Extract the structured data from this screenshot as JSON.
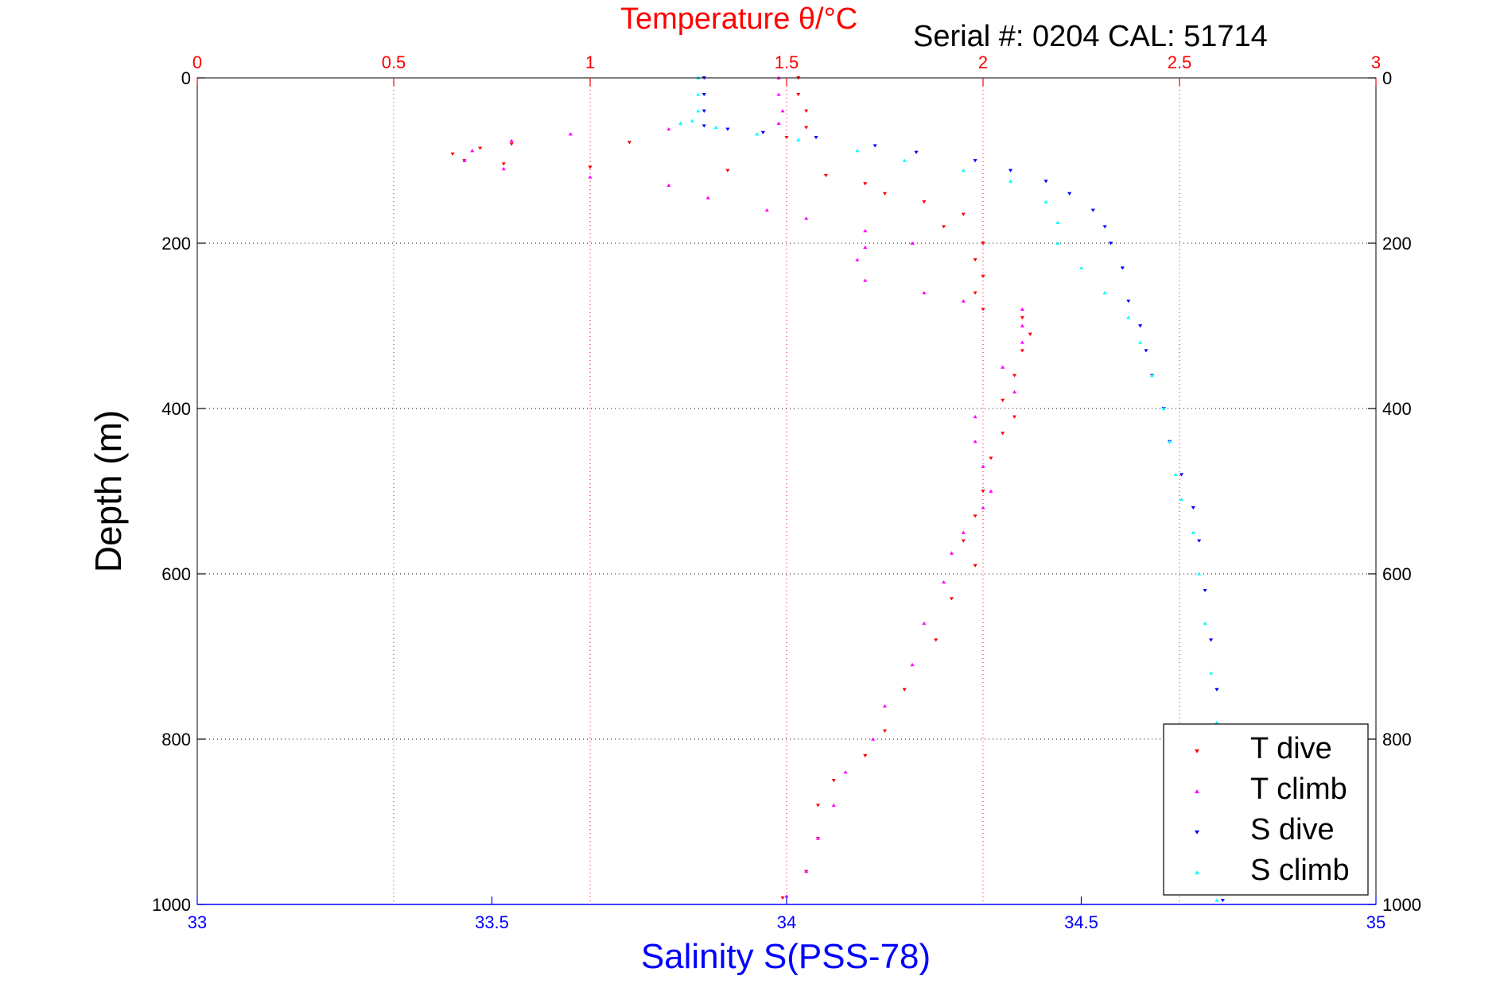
{
  "header": {
    "temp_title": "Temperature θ/°C",
    "serial": "Serial #: 0204  CAL: 51714"
  },
  "chart_data": {
    "type": "scatter",
    "title": "Temperature θ/°C",
    "ylabel": "Depth (m)",
    "xlabel": "Salinity S(PSS-78)",
    "top_axis": {
      "label": "Temperature θ/°C",
      "range": [
        0,
        3
      ],
      "ticks": [
        "0",
        "0.5",
        "1",
        "1.5",
        "2",
        "2.5",
        "3"
      ],
      "color": "#ff0000"
    },
    "bottom_axis": {
      "label": "Salinity S(PSS-78)",
      "range": [
        33,
        35
      ],
      "ticks": [
        "33",
        "33.5",
        "34",
        "34.5",
        "35"
      ],
      "color": "#0000ff"
    },
    "left_axis": {
      "range": [
        0,
        1000
      ],
      "reversed": true,
      "ticks": [
        "0",
        "200",
        "400",
        "600",
        "800",
        "1000"
      ]
    },
    "right_axis": {
      "range": [
        0,
        1000
      ],
      "reversed": true,
      "ticks": [
        "0",
        "200",
        "400",
        "600",
        "800",
        "1000"
      ]
    },
    "grid": true,
    "legend": {
      "position": "bottom-right",
      "entries": [
        "T dive",
        "T climb",
        "S dive",
        "S climb"
      ]
    },
    "series": [
      {
        "name": "T dive",
        "axis": "temperature",
        "color": "#ff0000",
        "marker": "triangle-down",
        "points": [
          [
            1.53,
            0
          ],
          [
            1.53,
            20
          ],
          [
            1.55,
            40
          ],
          [
            1.55,
            60
          ],
          [
            1.5,
            72
          ],
          [
            1.1,
            78
          ],
          [
            0.8,
            80
          ],
          [
            0.72,
            85
          ],
          [
            0.65,
            92
          ],
          [
            0.68,
            100
          ],
          [
            0.78,
            104
          ],
          [
            1.0,
            108
          ],
          [
            1.35,
            112
          ],
          [
            1.6,
            118
          ],
          [
            1.7,
            128
          ],
          [
            1.75,
            140
          ],
          [
            1.85,
            150
          ],
          [
            1.95,
            165
          ],
          [
            1.9,
            180
          ],
          [
            2.0,
            200
          ],
          [
            1.98,
            220
          ],
          [
            2.0,
            240
          ],
          [
            1.98,
            260
          ],
          [
            2.0,
            280
          ],
          [
            2.1,
            290
          ],
          [
            2.12,
            310
          ],
          [
            2.1,
            330
          ],
          [
            2.08,
            360
          ],
          [
            2.05,
            390
          ],
          [
            2.08,
            410
          ],
          [
            2.05,
            430
          ],
          [
            2.02,
            460
          ],
          [
            2.0,
            500
          ],
          [
            1.98,
            530
          ],
          [
            1.95,
            560
          ],
          [
            1.98,
            590
          ],
          [
            1.92,
            630
          ],
          [
            1.88,
            680
          ],
          [
            1.8,
            740
          ],
          [
            1.75,
            790
          ],
          [
            1.7,
            820
          ],
          [
            1.62,
            850
          ],
          [
            1.58,
            880
          ],
          [
            1.58,
            920
          ],
          [
            1.55,
            960
          ],
          [
            1.49,
            992
          ]
        ]
      },
      {
        "name": "T climb",
        "axis": "temperature",
        "color": "#ff00ff",
        "marker": "triangle-up",
        "points": [
          [
            1.48,
            0
          ],
          [
            1.48,
            20
          ],
          [
            1.49,
            40
          ],
          [
            1.48,
            55
          ],
          [
            1.2,
            62
          ],
          [
            0.95,
            68
          ],
          [
            0.8,
            76
          ],
          [
            0.7,
            88
          ],
          [
            0.68,
            100
          ],
          [
            0.78,
            110
          ],
          [
            1.0,
            120
          ],
          [
            1.2,
            130
          ],
          [
            1.3,
            145
          ],
          [
            1.45,
            160
          ],
          [
            1.55,
            170
          ],
          [
            1.7,
            185
          ],
          [
            1.82,
            200
          ],
          [
            1.7,
            205
          ],
          [
            1.68,
            220
          ],
          [
            1.7,
            245
          ],
          [
            1.85,
            260
          ],
          [
            1.95,
            270
          ],
          [
            2.1,
            280
          ],
          [
            2.1,
            300
          ],
          [
            2.1,
            320
          ],
          [
            2.05,
            350
          ],
          [
            2.08,
            380
          ],
          [
            1.98,
            410
          ],
          [
            1.98,
            440
          ],
          [
            2.0,
            470
          ],
          [
            2.02,
            500
          ],
          [
            2.0,
            520
          ],
          [
            1.95,
            550
          ],
          [
            1.92,
            575
          ],
          [
            1.9,
            610
          ],
          [
            1.85,
            660
          ],
          [
            1.82,
            710
          ],
          [
            1.75,
            760
          ],
          [
            1.72,
            800
          ],
          [
            1.65,
            840
          ],
          [
            1.62,
            880
          ],
          [
            1.58,
            920
          ],
          [
            1.55,
            960
          ],
          [
            1.5,
            990
          ]
        ]
      },
      {
        "name": "S dive",
        "axis": "salinity",
        "color": "#0000ff",
        "marker": "triangle-down",
        "points": [
          [
            33.86,
            0
          ],
          [
            33.86,
            20
          ],
          [
            33.86,
            40
          ],
          [
            33.86,
            58
          ],
          [
            33.9,
            62
          ],
          [
            33.96,
            66
          ],
          [
            34.05,
            72
          ],
          [
            34.15,
            82
          ],
          [
            34.22,
            90
          ],
          [
            34.32,
            100
          ],
          [
            34.38,
            112
          ],
          [
            34.44,
            125
          ],
          [
            34.48,
            140
          ],
          [
            34.52,
            160
          ],
          [
            34.54,
            180
          ],
          [
            34.55,
            200
          ],
          [
            34.57,
            230
          ],
          [
            34.58,
            270
          ],
          [
            34.6,
            300
          ],
          [
            34.61,
            330
          ],
          [
            34.62,
            360
          ],
          [
            34.64,
            400
          ],
          [
            34.65,
            440
          ],
          [
            34.67,
            480
          ],
          [
            34.69,
            520
          ],
          [
            34.7,
            560
          ],
          [
            34.71,
            620
          ],
          [
            34.72,
            680
          ],
          [
            34.73,
            740
          ],
          [
            34.74,
            800
          ],
          [
            34.74,
            860
          ],
          [
            34.74,
            920
          ],
          [
            34.74,
            995
          ]
        ]
      },
      {
        "name": "S climb",
        "axis": "salinity",
        "color": "#00ffff",
        "marker": "triangle-up",
        "points": [
          [
            33.85,
            0
          ],
          [
            33.85,
            20
          ],
          [
            33.85,
            40
          ],
          [
            33.84,
            52
          ],
          [
            33.82,
            55
          ],
          [
            33.88,
            60
          ],
          [
            33.95,
            68
          ],
          [
            34.02,
            75
          ],
          [
            34.12,
            88
          ],
          [
            34.2,
            100
          ],
          [
            34.3,
            112
          ],
          [
            34.38,
            125
          ],
          [
            34.44,
            150
          ],
          [
            34.46,
            175
          ],
          [
            34.46,
            200
          ],
          [
            34.5,
            230
          ],
          [
            34.54,
            260
          ],
          [
            34.58,
            290
          ],
          [
            34.6,
            320
          ],
          [
            34.62,
            360
          ],
          [
            34.64,
            400
          ],
          [
            34.65,
            440
          ],
          [
            34.66,
            480
          ],
          [
            34.67,
            510
          ],
          [
            34.69,
            550
          ],
          [
            34.7,
            600
          ],
          [
            34.71,
            660
          ],
          [
            34.72,
            720
          ],
          [
            34.73,
            780
          ],
          [
            34.73,
            840
          ],
          [
            34.73,
            920
          ],
          [
            34.73,
            995
          ]
        ]
      }
    ]
  }
}
